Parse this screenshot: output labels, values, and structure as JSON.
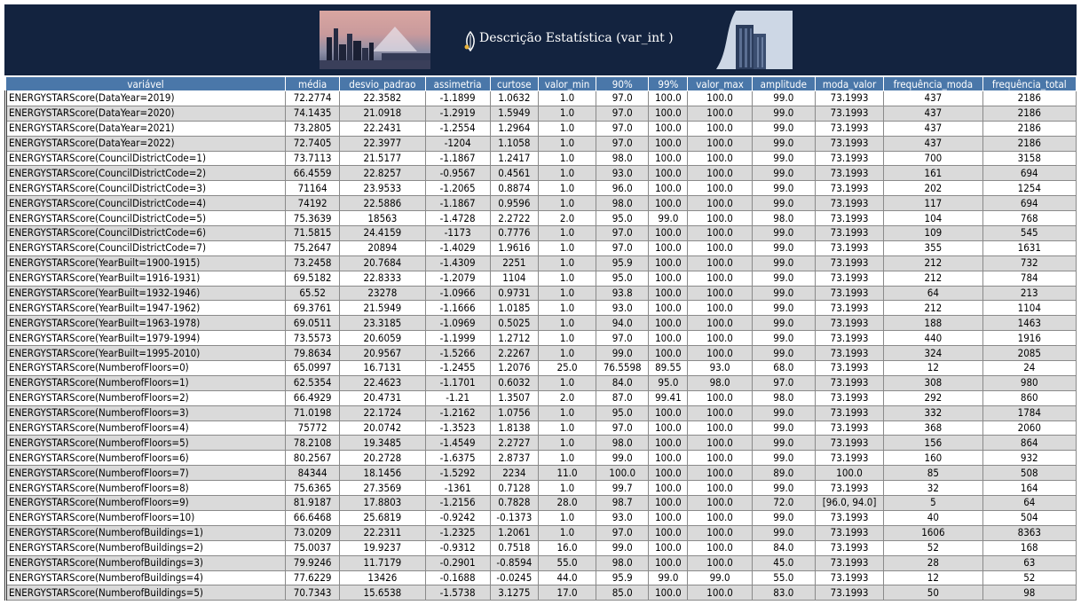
{
  "banner": {
    "title": "Descrição Estatística (var_int )"
  },
  "table": {
    "headers": [
      "variável",
      "média",
      "desvio_padrao",
      "assimetria",
      "curtose",
      "valor_min",
      "90%",
      "99%",
      "valor_max",
      "amplitude",
      "moda_valor",
      "frequência_moda",
      "frequência_total"
    ],
    "rows": [
      [
        "ENERGYSTARScore(DataYear=2019)",
        "72.2774",
        "22.3582",
        "-1.1899",
        "1.0632",
        "1.0",
        "97.0",
        "100.0",
        "100.0",
        "99.0",
        "73.1993",
        "437",
        "2186"
      ],
      [
        "ENERGYSTARScore(DataYear=2020)",
        "74.1435",
        "21.0918",
        "-1.2919",
        "1.5949",
        "1.0",
        "97.0",
        "100.0",
        "100.0",
        "99.0",
        "73.1993",
        "437",
        "2186"
      ],
      [
        "ENERGYSTARScore(DataYear=2021)",
        "73.2805",
        "22.2431",
        "-1.2554",
        "1.2964",
        "1.0",
        "97.0",
        "100.0",
        "100.0",
        "99.0",
        "73.1993",
        "437",
        "2186"
      ],
      [
        "ENERGYSTARScore(DataYear=2022)",
        "72.7405",
        "22.3977",
        "-1204",
        "1.1058",
        "1.0",
        "97.0",
        "100.0",
        "100.0",
        "99.0",
        "73.1993",
        "437",
        "2186"
      ],
      [
        "ENERGYSTARScore(CouncilDistrictCode=1)",
        "73.7113",
        "21.5177",
        "-1.1867",
        "1.2417",
        "1.0",
        "98.0",
        "100.0",
        "100.0",
        "99.0",
        "73.1993",
        "700",
        "3158"
      ],
      [
        "ENERGYSTARScore(CouncilDistrictCode=2)",
        "66.4559",
        "22.8257",
        "-0.9567",
        "0.4561",
        "1.0",
        "93.0",
        "100.0",
        "100.0",
        "99.0",
        "73.1993",
        "161",
        "694"
      ],
      [
        "ENERGYSTARScore(CouncilDistrictCode=3)",
        "71164",
        "23.9533",
        "-1.2065",
        "0.8874",
        "1.0",
        "96.0",
        "100.0",
        "100.0",
        "99.0",
        "73.1993",
        "202",
        "1254"
      ],
      [
        "ENERGYSTARScore(CouncilDistrictCode=4)",
        "74192",
        "22.5886",
        "-1.1867",
        "0.9596",
        "1.0",
        "98.0",
        "100.0",
        "100.0",
        "99.0",
        "73.1993",
        "117",
        "694"
      ],
      [
        "ENERGYSTARScore(CouncilDistrictCode=5)",
        "75.3639",
        "18563",
        "-1.4728",
        "2.2722",
        "2.0",
        "95.0",
        "99.0",
        "100.0",
        "98.0",
        "73.1993",
        "104",
        "768"
      ],
      [
        "ENERGYSTARScore(CouncilDistrictCode=6)",
        "71.5815",
        "24.4159",
        "-1173",
        "0.7776",
        "1.0",
        "97.0",
        "100.0",
        "100.0",
        "99.0",
        "73.1993",
        "109",
        "545"
      ],
      [
        "ENERGYSTARScore(CouncilDistrictCode=7)",
        "75.2647",
        "20894",
        "-1.4029",
        "1.9616",
        "1.0",
        "97.0",
        "100.0",
        "100.0",
        "99.0",
        "73.1993",
        "355",
        "1631"
      ],
      [
        "ENERGYSTARScore(YearBuilt=1900-1915)",
        "73.2458",
        "20.7684",
        "-1.4309",
        "2251",
        "1.0",
        "95.9",
        "100.0",
        "100.0",
        "99.0",
        "73.1993",
        "212",
        "732"
      ],
      [
        "ENERGYSTARScore(YearBuilt=1916-1931)",
        "69.5182",
        "22.8333",
        "-1.2079",
        "1104",
        "1.0",
        "95.0",
        "100.0",
        "100.0",
        "99.0",
        "73.1993",
        "212",
        "784"
      ],
      [
        "ENERGYSTARScore(YearBuilt=1932-1946)",
        "65.52",
        "23278",
        "-1.0966",
        "0.9731",
        "1.0",
        "93.8",
        "100.0",
        "100.0",
        "99.0",
        "73.1993",
        "64",
        "213"
      ],
      [
        "ENERGYSTARScore(YearBuilt=1947-1962)",
        "69.3761",
        "21.5949",
        "-1.1666",
        "1.0185",
        "1.0",
        "93.0",
        "100.0",
        "100.0",
        "99.0",
        "73.1993",
        "212",
        "1104"
      ],
      [
        "ENERGYSTARScore(YearBuilt=1963-1978)",
        "69.0511",
        "23.3185",
        "-1.0969",
        "0.5025",
        "1.0",
        "94.0",
        "100.0",
        "100.0",
        "99.0",
        "73.1993",
        "188",
        "1463"
      ],
      [
        "ENERGYSTARScore(YearBuilt=1979-1994)",
        "73.5573",
        "20.6059",
        "-1.1999",
        "1.2712",
        "1.0",
        "97.0",
        "100.0",
        "100.0",
        "99.0",
        "73.1993",
        "440",
        "1916"
      ],
      [
        "ENERGYSTARScore(YearBuilt=1995-2010)",
        "79.8634",
        "20.9567",
        "-1.5266",
        "2.2267",
        "1.0",
        "99.0",
        "100.0",
        "100.0",
        "99.0",
        "73.1993",
        "324",
        "2085"
      ],
      [
        "ENERGYSTARScore(NumberofFloors=0)",
        "65.0997",
        "16.7131",
        "-1.2455",
        "1.2076",
        "25.0",
        "76.5598",
        "89.55",
        "93.0",
        "68.0",
        "73.1993",
        "12",
        "24"
      ],
      [
        "ENERGYSTARScore(NumberofFloors=1)",
        "62.5354",
        "22.4623",
        "-1.1701",
        "0.6032",
        "1.0",
        "84.0",
        "95.0",
        "98.0",
        "97.0",
        "73.1993",
        "308",
        "980"
      ],
      [
        "ENERGYSTARScore(NumberofFloors=2)",
        "66.4929",
        "20.4731",
        "-1.21",
        "1.3507",
        "2.0",
        "87.0",
        "99.41",
        "100.0",
        "98.0",
        "73.1993",
        "292",
        "860"
      ],
      [
        "ENERGYSTARScore(NumberofFloors=3)",
        "71.0198",
        "22.1724",
        "-1.2162",
        "1.0756",
        "1.0",
        "95.0",
        "100.0",
        "100.0",
        "99.0",
        "73.1993",
        "332",
        "1784"
      ],
      [
        "ENERGYSTARScore(NumberofFloors=4)",
        "75772",
        "20.0742",
        "-1.3523",
        "1.8138",
        "1.0",
        "97.0",
        "100.0",
        "100.0",
        "99.0",
        "73.1993",
        "368",
        "2060"
      ],
      [
        "ENERGYSTARScore(NumberofFloors=5)",
        "78.2108",
        "19.3485",
        "-1.4549",
        "2.2727",
        "1.0",
        "98.0",
        "100.0",
        "100.0",
        "99.0",
        "73.1993",
        "156",
        "864"
      ],
      [
        "ENERGYSTARScore(NumberofFloors=6)",
        "80.2567",
        "20.2728",
        "-1.6375",
        "2.8737",
        "1.0",
        "99.0",
        "100.0",
        "100.0",
        "99.0",
        "73.1993",
        "160",
        "932"
      ],
      [
        "ENERGYSTARScore(NumberofFloors=7)",
        "84344",
        "18.1456",
        "-1.5292",
        "2234",
        "11.0",
        "100.0",
        "100.0",
        "100.0",
        "89.0",
        "100.0",
        "85",
        "508"
      ],
      [
        "ENERGYSTARScore(NumberofFloors=8)",
        "75.6365",
        "27.3569",
        "-1361",
        "0.7128",
        "1.0",
        "99.7",
        "100.0",
        "100.0",
        "99.0",
        "73.1993",
        "32",
        "164"
      ],
      [
        "ENERGYSTARScore(NumberofFloors=9)",
        "81.9187",
        "17.8803",
        "-1.2156",
        "0.7828",
        "28.0",
        "98.7",
        "100.0",
        "100.0",
        "72.0",
        "[96.0, 94.0]",
        "5",
        "64"
      ],
      [
        "ENERGYSTARScore(NumberofFloors=10)",
        "66.6468",
        "25.6819",
        "-0.9242",
        "-0.1373",
        "1.0",
        "93.0",
        "100.0",
        "100.0",
        "99.0",
        "73.1993",
        "40",
        "504"
      ],
      [
        "ENERGYSTARScore(NumberofBuildings=1)",
        "73.0209",
        "22.2311",
        "-1.2325",
        "1.2061",
        "1.0",
        "97.0",
        "100.0",
        "100.0",
        "99.0",
        "73.1993",
        "1606",
        "8363"
      ],
      [
        "ENERGYSTARScore(NumberofBuildings=2)",
        "75.0037",
        "19.9237",
        "-0.9312",
        "0.7518",
        "16.0",
        "99.0",
        "100.0",
        "100.0",
        "84.0",
        "73.1993",
        "52",
        "168"
      ],
      [
        "ENERGYSTARScore(NumberofBuildings=3)",
        "79.9246",
        "11.7179",
        "-0.2901",
        "-0.8594",
        "55.0",
        "98.0",
        "100.0",
        "100.0",
        "45.0",
        "73.1993",
        "28",
        "63"
      ],
      [
        "ENERGYSTARScore(NumberofBuildings=4)",
        "77.6229",
        "13426",
        "-0.1688",
        "-0.0245",
        "44.0",
        "95.9",
        "99.0",
        "99.0",
        "55.0",
        "73.1993",
        "12",
        "52"
      ],
      [
        "ENERGYSTARScore(NumberofBuildings=5)",
        "70.7343",
        "15.6538",
        "-1.5738",
        "3.1275",
        "17.0",
        "85.0",
        "100.0",
        "100.0",
        "83.0",
        "73.1993",
        "50",
        "98"
      ]
    ]
  }
}
